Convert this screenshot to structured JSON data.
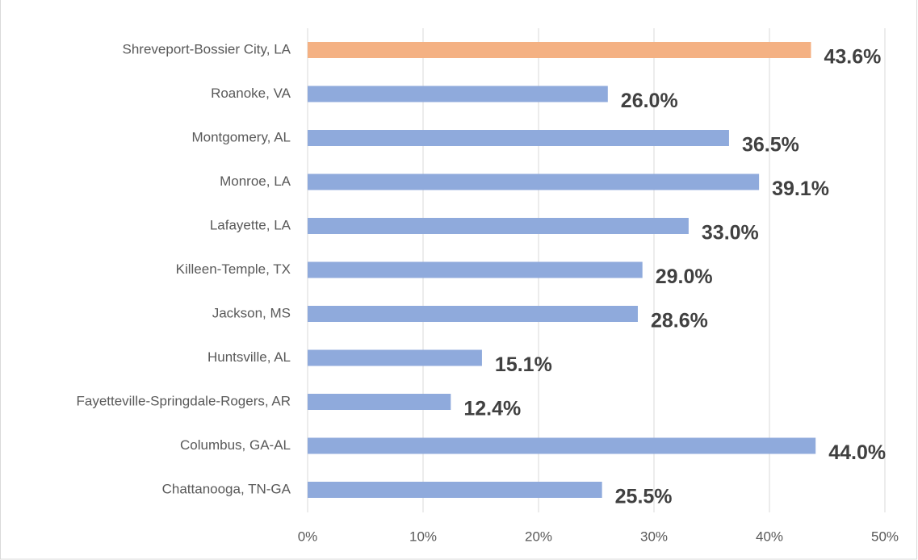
{
  "chart_data": {
    "type": "bar",
    "orientation": "horizontal",
    "categories": [
      "Shreveport-Bossier City, LA",
      "Roanoke, VA",
      "Montgomery, AL",
      "Monroe, LA",
      "Lafayette, LA",
      "Killeen-Temple, TX",
      "Jackson, MS",
      "Huntsville, AL",
      "Fayetteville-Springdale-Rogers, AR",
      "Columbus, GA-AL",
      "Chattanooga, TN-GA"
    ],
    "values": [
      43.6,
      26.0,
      36.5,
      39.1,
      33.0,
      29.0,
      28.6,
      15.1,
      12.4,
      44.0,
      25.5
    ],
    "value_labels": [
      "43.6%",
      "26.0%",
      "36.5%",
      "39.1%",
      "33.0%",
      "29.0%",
      "28.6%",
      "15.1%",
      "12.4%",
      "44.0%",
      "25.5%"
    ],
    "colors": [
      "#f4b183",
      "#8faadc",
      "#8faadc",
      "#8faadc",
      "#8faadc",
      "#8faadc",
      "#8faadc",
      "#8faadc",
      "#8faadc",
      "#8faadc",
      "#8faadc"
    ],
    "xlim": [
      0,
      50
    ],
    "xticks": [
      {
        "value": 0,
        "label": "0%"
      },
      {
        "value": 10,
        "label": "10%"
      },
      {
        "value": 20,
        "label": "20%"
      },
      {
        "value": 30,
        "label": "30%"
      },
      {
        "value": 40,
        "label": "40%"
      },
      {
        "value": 50,
        "label": "50%"
      }
    ],
    "grid": true
  }
}
